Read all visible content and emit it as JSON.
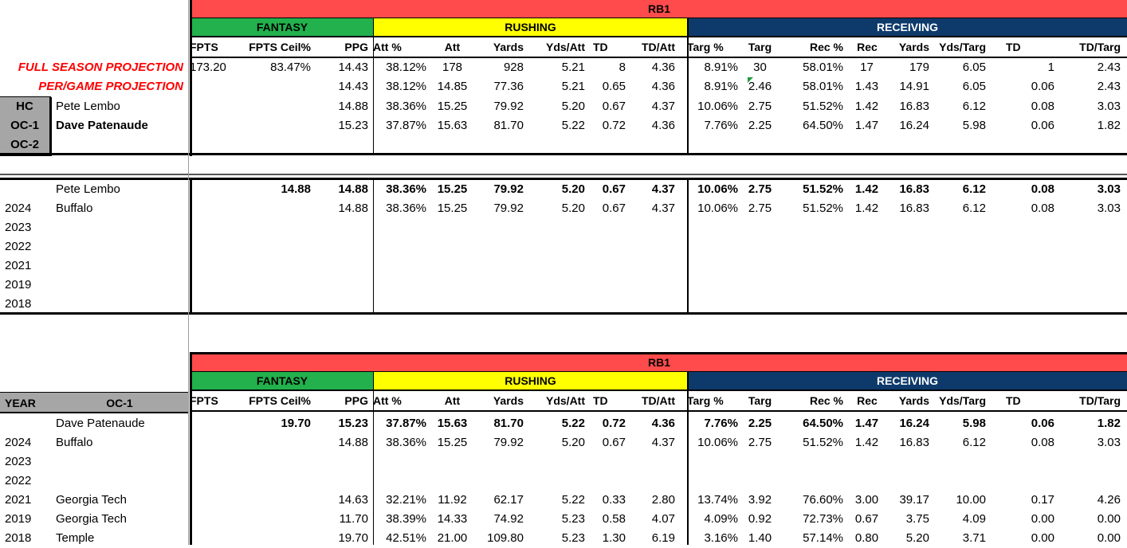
{
  "colors": {
    "rb_band": "#ff4b4b",
    "fantasy": "#22b14c",
    "rushing": "#ffff00",
    "receiving": "#0e3a6b",
    "gray": "#a6a6a6",
    "proj_red": "#ff0000"
  },
  "group_labels": {
    "rb": "RB1",
    "fantasy": "FANTASY",
    "rushing": "RUSHING",
    "receiving": "RECEIVING"
  },
  "columns": [
    "FPTS",
    "FPTS Ceil%",
    "PPG",
    "Att %",
    "Att",
    "Yards",
    "Yds/Att",
    "TD",
    "TD/Att",
    "Targ %",
    "Targ",
    "Rec %",
    "Rec",
    "Yards",
    "Yds/Targ",
    "TD",
    "TD/Targ"
  ],
  "top": {
    "full_label": "FULL SEASON PROJECTION",
    "pg_label": "PER/GAME PROJECTION",
    "full_row": [
      "173.20",
      "83.47%",
      "14.43",
      "38.12%",
      "178",
      "928",
      "5.21",
      "8",
      "4.36",
      "8.91%",
      "30",
      "58.01%",
      "17",
      "179",
      "6.05",
      "1",
      "2.43"
    ],
    "pg_row": [
      "",
      "",
      "14.43",
      "38.12%",
      "14.85",
      "77.36",
      "5.21",
      "0.65",
      "4.36",
      "8.91%",
      "2.46",
      "58.01%",
      "1.43",
      "14.91",
      "6.05",
      "0.06",
      "2.43"
    ],
    "coaches": [
      {
        "role": "HC",
        "name": "Pete Lembo",
        "vals": [
          "",
          "",
          "14.88",
          "38.36%",
          "15.25",
          "79.92",
          "5.20",
          "0.67",
          "4.37",
          "10.06%",
          "2.75",
          "51.52%",
          "1.42",
          "16.83",
          "6.12",
          "0.08",
          "3.03"
        ]
      },
      {
        "role": "OC-1",
        "name": "Dave Patenaude",
        "vals": [
          "",
          "",
          "15.23",
          "37.87%",
          "15.63",
          "81.70",
          "5.22",
          "0.72",
          "4.36",
          "7.76%",
          "2.25",
          "64.50%",
          "1.47",
          "16.24",
          "5.98",
          "0.06",
          "1.82"
        ]
      },
      {
        "role": "OC-2",
        "name": "",
        "vals": []
      }
    ]
  },
  "hc_section": {
    "name": "Pete Lembo",
    "summary": [
      "",
      "14.88",
      "14.88",
      "38.36%",
      "15.25",
      "79.92",
      "5.20",
      "0.67",
      "4.37",
      "10.06%",
      "2.75",
      "51.52%",
      "1.42",
      "16.83",
      "6.12",
      "0.08",
      "3.03"
    ],
    "rows": [
      {
        "year": "2024",
        "team": "Buffalo",
        "vals": [
          "",
          "",
          "14.88",
          "38.36%",
          "15.25",
          "79.92",
          "5.20",
          "0.67",
          "4.37",
          "10.06%",
          "2.75",
          "51.52%",
          "1.42",
          "16.83",
          "6.12",
          "0.08",
          "3.03"
        ]
      },
      {
        "year": "2023",
        "team": "",
        "vals": []
      },
      {
        "year": "2022",
        "team": "",
        "vals": []
      },
      {
        "year": "2021",
        "team": "",
        "vals": []
      },
      {
        "year": "2019",
        "team": "",
        "vals": []
      },
      {
        "year": "2018",
        "team": "",
        "vals": []
      }
    ]
  },
  "oc_section": {
    "year_header": "YEAR",
    "oc_header": "OC-1",
    "name": "Dave Patenaude",
    "summary": [
      "",
      "19.70",
      "15.23",
      "37.87%",
      "15.63",
      "81.70",
      "5.22",
      "0.72",
      "4.36",
      "7.76%",
      "2.25",
      "64.50%",
      "1.47",
      "16.24",
      "5.98",
      "0.06",
      "1.82"
    ],
    "rows": [
      {
        "year": "2024",
        "team": "Buffalo",
        "vals": [
          "",
          "",
          "14.88",
          "38.36%",
          "15.25",
          "79.92",
          "5.20",
          "0.67",
          "4.37",
          "10.06%",
          "2.75",
          "51.52%",
          "1.42",
          "16.83",
          "6.12",
          "0.08",
          "3.03"
        ]
      },
      {
        "year": "2023",
        "team": "",
        "vals": []
      },
      {
        "year": "2022",
        "team": "",
        "vals": []
      },
      {
        "year": "2021",
        "team": "Georgia Tech",
        "vals": [
          "",
          "",
          "14.63",
          "32.21%",
          "11.92",
          "62.17",
          "5.22",
          "0.33",
          "2.80",
          "13.74%",
          "3.92",
          "76.60%",
          "3.00",
          "39.17",
          "10.00",
          "0.17",
          "4.26"
        ]
      },
      {
        "year": "2019",
        "team": "Georgia Tech",
        "vals": [
          "",
          "",
          "11.70",
          "38.39%",
          "14.33",
          "74.92",
          "5.23",
          "0.58",
          "4.07",
          "4.09%",
          "0.92",
          "72.73%",
          "0.67",
          "3.75",
          "4.09",
          "0.00",
          "0.00"
        ]
      },
      {
        "year": "2018",
        "team": "Temple",
        "vals": [
          "",
          "",
          "19.70",
          "42.51%",
          "21.00",
          "109.80",
          "5.23",
          "1.30",
          "6.19",
          "3.16%",
          "1.40",
          "57.14%",
          "0.80",
          "5.20",
          "3.71",
          "0.00",
          "0.00"
        ]
      }
    ]
  }
}
